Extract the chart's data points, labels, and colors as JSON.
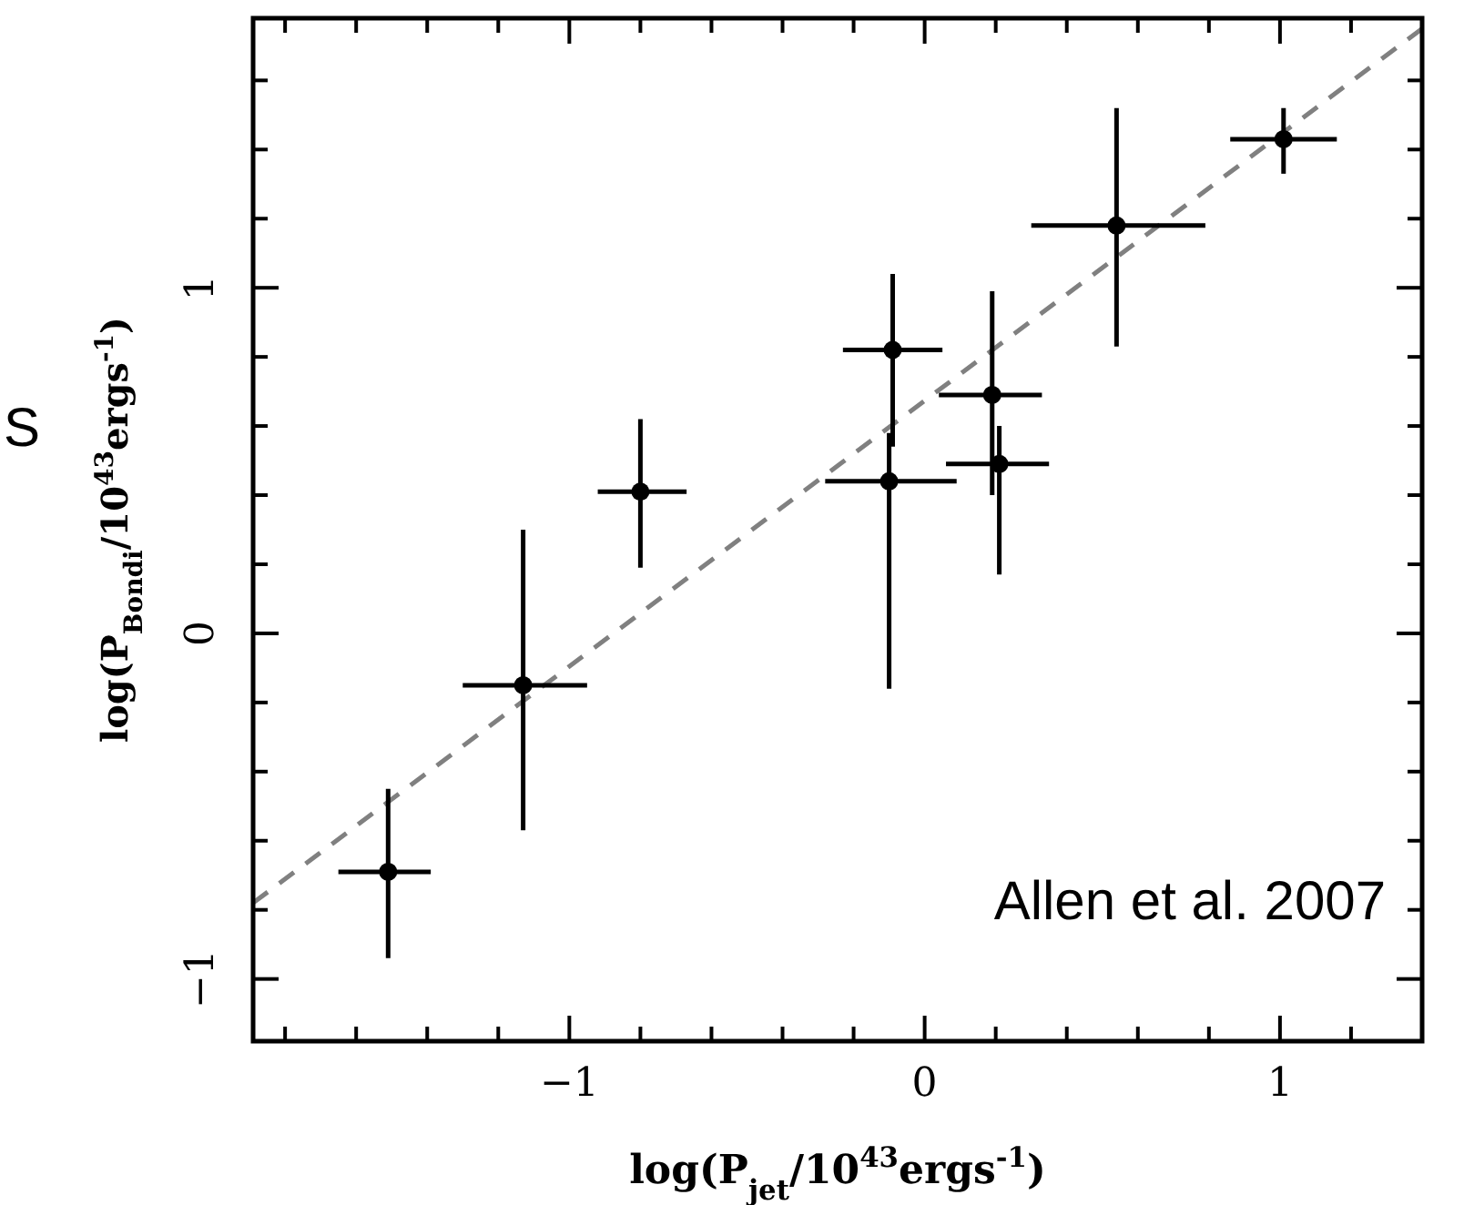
{
  "chart_data": {
    "type": "scatter",
    "xlabel": "log(P$_{jet}$/10$^{43}$ergs$^{-1}$)",
    "ylabel": "log(P$_{Bondi}$/10$^{43}$ergs$^{-1}$)",
    "annotations": [
      "Allen et al. 2007",
      "S"
    ],
    "xlim": [
      -1.89,
      1.4
    ],
    "ylim": [
      -1.18,
      1.78
    ],
    "xticks": [
      {
        "value": -1.8,
        "label": null
      },
      {
        "value": -1.6,
        "label": null
      },
      {
        "value": -1.4,
        "label": null
      },
      {
        "value": -1.2,
        "label": null
      },
      {
        "value": -1,
        "label": "−1"
      },
      {
        "value": -0.8,
        "label": null
      },
      {
        "value": -0.6,
        "label": null
      },
      {
        "value": -0.4,
        "label": null
      },
      {
        "value": -0.2,
        "label": null
      },
      0,
      {
        "value": 0.2,
        "label": null
      },
      {
        "value": 0.4,
        "label": null
      },
      {
        "value": 0.6,
        "label": null
      },
      {
        "value": 0.8,
        "label": null
      },
      1,
      {
        "value": 1.2,
        "label": null
      }
    ],
    "yticks": [
      {
        "value": -1,
        "label": "−1"
      },
      {
        "value": -0.8,
        "label": null
      },
      {
        "value": -0.6,
        "label": null
      },
      {
        "value": -0.4,
        "label": null
      },
      {
        "value": -0.2,
        "label": null
      },
      0,
      {
        "value": 0.2,
        "label": null
      },
      {
        "value": 0.4,
        "label": null
      },
      {
        "value": 0.6,
        "label": null
      },
      {
        "value": 0.8,
        "label": null
      },
      1,
      {
        "value": 1.2,
        "label": null
      },
      {
        "value": 1.4,
        "label": null
      },
      {
        "value": 1.6,
        "label": null
      }
    ],
    "grid": false,
    "marker": "circle",
    "series": [
      {
        "type": "line",
        "color": "#808080",
        "line_style": "dashed",
        "marker": "none",
        "x": [
          -1.89,
          1.4
        ],
        "values": [
          -0.78,
          1.75
        ]
      },
      {
        "color": "#000000",
        "x": [
          -1.51,
          -1.13,
          -0.8,
          -0.09,
          -0.1,
          0.19,
          0.21,
          0.54,
          1.01
        ],
        "values": [
          -0.69,
          -0.15,
          0.41,
          0.82,
          0.44,
          0.69,
          0.49,
          1.18,
          1.43
        ],
        "errors": [
          [
            -0.94,
            -0.45
          ],
          [
            -0.57,
            0.3
          ],
          [
            0.19,
            0.62
          ],
          [
            0.54,
            1.04
          ],
          [
            -0.16,
            0.58
          ],
          [
            0.4,
            0.99
          ],
          [
            0.17,
            0.6
          ],
          [
            0.83,
            1.52
          ],
          [
            1.33,
            1.52
          ]
        ],
        "xerrors": [
          [
            -1.65,
            -1.39
          ],
          [
            -1.3,
            -0.95
          ],
          [
            -0.92,
            -0.67
          ],
          [
            -0.23,
            0.05
          ],
          [
            -0.28,
            0.09
          ],
          [
            0.04,
            0.33
          ],
          [
            0.06,
            0.35
          ],
          [
            0.3,
            0.79
          ],
          [
            0.86,
            1.16
          ]
        ]
      }
    ]
  }
}
